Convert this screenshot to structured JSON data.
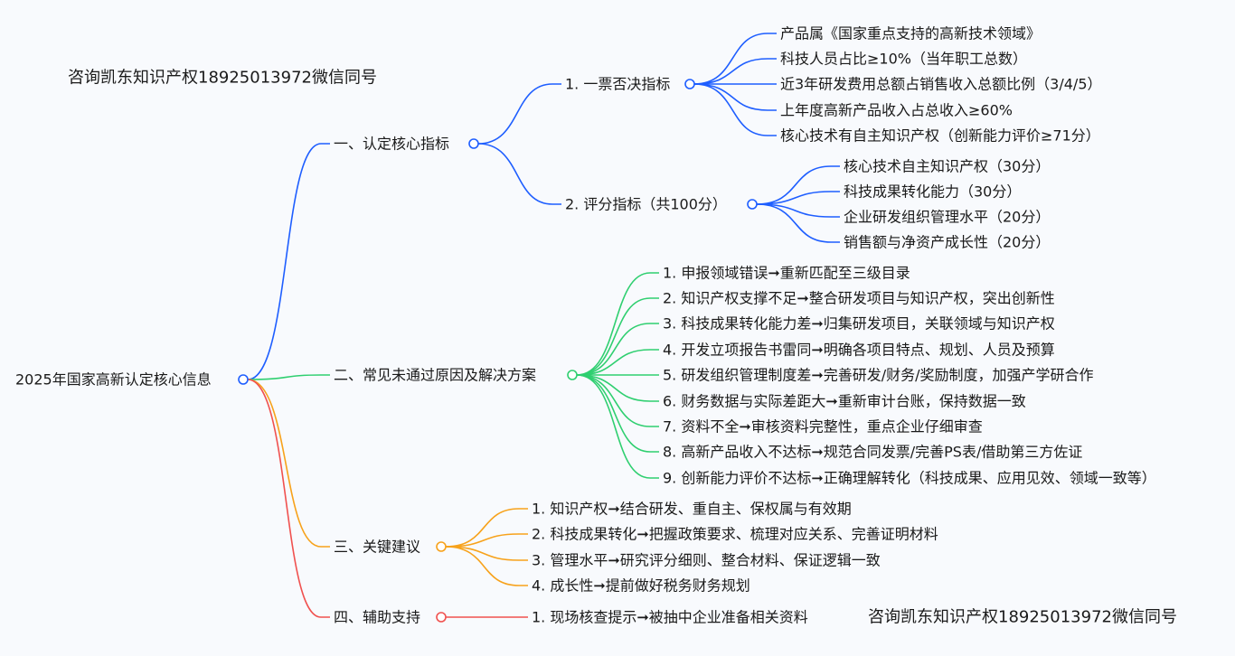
{
  "colors": {
    "blue": "#1e5eff",
    "green": "#2fcf70",
    "orange": "#f7a21b",
    "red": "#f0514f",
    "watermark": "#f0514f",
    "text": "#1a1a1a"
  },
  "watermarks": [
    "咨询凯东知识产权18925013972微信同号",
    "咨询凯东知识产权18925013972微信同号"
  ],
  "root": {
    "label": "2025年国家高新认定核心信息",
    "children": [
      {
        "label": "一、认定核心指标",
        "color": "blue",
        "children": [
          {
            "label": "1. 一票否决指标",
            "children": [
              {
                "label": "产品属《国家重点支持的高新技术领域》"
              },
              {
                "label": "科技人员占比≥10%（当年职工总数）"
              },
              {
                "label": "近3年研发费用总额占销售收入总额比例（3/4/5）"
              },
              {
                "label": "上年度高新产品收入占总收入≥60%"
              },
              {
                "label": "核心技术有自主知识产权（创新能力评价≥71分）"
              }
            ]
          },
          {
            "label": "2. 评分指标（共100分）",
            "children": [
              {
                "label": "核心技术自主知识产权（30分）"
              },
              {
                "label": "科技成果转化能力（30分）"
              },
              {
                "label": "企业研发组织管理水平（20分）"
              },
              {
                "label": "销售额与净资产成长性（20分）"
              }
            ]
          }
        ]
      },
      {
        "label": "二、常见未通过原因及解决方案",
        "color": "green",
        "children": [
          {
            "label": "1. 申报领域错误➞重新匹配至三级目录"
          },
          {
            "label": "2. 知识产权支撑不足➞整合研发项目与知识产权，突出创新性"
          },
          {
            "label": "3. 科技成果转化能力差➞归集研发项目，关联领域与知识产权"
          },
          {
            "label": "4. 开发立项报告书雷同➞明确各项目特点、规划、人员及预算"
          },
          {
            "label": "5. 研发组织管理制度差➞完善研发/财务/奖励制度，加强产学研合作"
          },
          {
            "label": "6. 财务数据与实际差距大➞重新审计台账，保持数据一致"
          },
          {
            "label": "7. 资料不全➞审核资料完整性，重点企业仔细审查"
          },
          {
            "label": "8. 高新产品收入不达标➞规范合同发票/完善PS表/借助第三方佐证"
          },
          {
            "label": "9. 创新能力评价不达标➞正确理解转化（科技成果、应用见效、领域一致等）"
          }
        ]
      },
      {
        "label": "三、关键建议",
        "color": "orange",
        "children": [
          {
            "label": "1. 知识产权➞结合研发、重自主、保权属与有效期"
          },
          {
            "label": "2. 科技成果转化➞把握政策要求、梳理对应关系、完善证明材料"
          },
          {
            "label": "3. 管理水平➞研究评分细则、整合材料、保证逻辑一致"
          },
          {
            "label": "4. 成长性➞提前做好税务财务规划"
          }
        ]
      },
      {
        "label": "四、辅助支持",
        "color": "red",
        "children": [
          {
            "label": "1. 现场核查提示➞被抽中企业准备相关资料"
          }
        ]
      }
    ]
  }
}
